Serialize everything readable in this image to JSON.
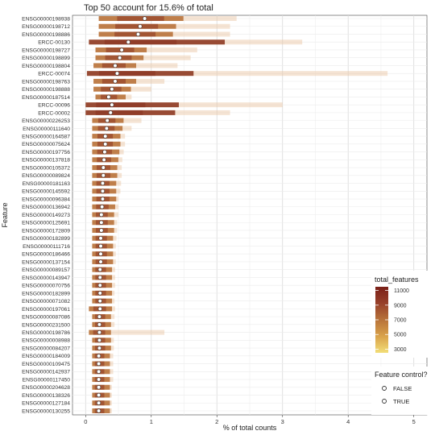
{
  "chart_data": {
    "type": "scatter",
    "title": "Top 50 account for 15.6% of total",
    "xlabel": "% of total counts",
    "ylabel": "Feature",
    "xlim": [
      -0.2,
      5.2
    ],
    "x_ticks": [
      0,
      1,
      2,
      3,
      4,
      5
    ],
    "grid": true,
    "features": [
      {
        "name": "ENSG00000198938",
        "median": 0.9,
        "low": 0.2,
        "high": 2.3
      },
      {
        "name": "ENSG00000198712",
        "median": 0.83,
        "low": 0.2,
        "high": 2.2
      },
      {
        "name": "ENSG00000198886",
        "median": 0.8,
        "low": 0.2,
        "high": 2.2
      },
      {
        "name": "ERCC-00130",
        "median": 0.65,
        "low": 0.05,
        "high": 3.3
      },
      {
        "name": "ENSG00000198727",
        "median": 0.55,
        "low": 0.15,
        "high": 1.7
      },
      {
        "name": "ENSG00000198899",
        "median": 0.52,
        "low": 0.15,
        "high": 1.6
      },
      {
        "name": "ENSG00000198804",
        "median": 0.45,
        "low": 0.12,
        "high": 1.4
      },
      {
        "name": "ERCC-00074",
        "median": 0.48,
        "low": 0.02,
        "high": 4.6
      },
      {
        "name": "ENSG00000198763",
        "median": 0.45,
        "low": 0.12,
        "high": 1.2
      },
      {
        "name": "ENSG00000198888",
        "median": 0.4,
        "low": 0.12,
        "high": 1.0
      },
      {
        "name": "ENSG00000187514",
        "median": 0.35,
        "low": 0.15,
        "high": 0.7
      },
      {
        "name": "ERCC-00096",
        "median": 0.4,
        "low": 0.0,
        "high": 3.0
      },
      {
        "name": "ERCC-00002",
        "median": 0.38,
        "low": 0.0,
        "high": 2.2
      },
      {
        "name": "ENSG00000226253",
        "median": 0.33,
        "low": 0.1,
        "high": 0.85
      },
      {
        "name": "ENSG00000111640",
        "median": 0.32,
        "low": 0.1,
        "high": 0.7
      },
      {
        "name": "ENSG00000164587",
        "median": 0.3,
        "low": 0.1,
        "high": 0.6
      },
      {
        "name": "ENSG00000075624",
        "median": 0.3,
        "low": 0.1,
        "high": 0.6
      },
      {
        "name": "ENSG00000197756",
        "median": 0.29,
        "low": 0.1,
        "high": 0.58
      },
      {
        "name": "ENSG00000137818",
        "median": 0.28,
        "low": 0.1,
        "high": 0.56
      },
      {
        "name": "ENSG00000105372",
        "median": 0.27,
        "low": 0.1,
        "high": 0.55
      },
      {
        "name": "ENSG00000089824",
        "median": 0.27,
        "low": 0.1,
        "high": 0.55
      },
      {
        "name": "ENSG00000181163",
        "median": 0.26,
        "low": 0.1,
        "high": 0.54
      },
      {
        "name": "ENSG00000145592",
        "median": 0.26,
        "low": 0.1,
        "high": 0.53
      },
      {
        "name": "ENSG00000096384",
        "median": 0.26,
        "low": 0.1,
        "high": 0.5
      },
      {
        "name": "ENSG00000136942",
        "median": 0.25,
        "low": 0.1,
        "high": 0.5
      },
      {
        "name": "ENSG00000149273",
        "median": 0.24,
        "low": 0.1,
        "high": 0.5
      },
      {
        "name": "ENSG00000125691",
        "median": 0.24,
        "low": 0.1,
        "high": 0.48
      },
      {
        "name": "ENSG00000172809",
        "median": 0.24,
        "low": 0.1,
        "high": 0.48
      },
      {
        "name": "ENSG00000182899",
        "median": 0.23,
        "low": 0.1,
        "high": 0.47
      },
      {
        "name": "ENSG00000111716",
        "median": 0.23,
        "low": 0.1,
        "high": 0.46
      },
      {
        "name": "ENSG00000186466",
        "median": 0.23,
        "low": 0.1,
        "high": 0.46
      },
      {
        "name": "ENSG00000137154",
        "median": 0.23,
        "low": 0.1,
        "high": 0.46
      },
      {
        "name": "ENSG00000089157",
        "median": 0.22,
        "low": 0.1,
        "high": 0.45
      },
      {
        "name": "ENSG00000143947",
        "median": 0.22,
        "low": 0.1,
        "high": 0.45
      },
      {
        "name": "ENSG00000070756",
        "median": 0.22,
        "low": 0.1,
        "high": 0.45
      },
      {
        "name": "ENSG00000182899",
        "median": 0.22,
        "low": 0.1,
        "high": 0.44
      },
      {
        "name": "ENSG00000071082",
        "median": 0.22,
        "low": 0.1,
        "high": 0.44
      },
      {
        "name": "ENSG00000197061",
        "median": 0.22,
        "low": 0.05,
        "high": 0.45
      },
      {
        "name": "ENSG00000087086",
        "median": 0.21,
        "low": 0.1,
        "high": 0.44
      },
      {
        "name": "ENSG00000231500",
        "median": 0.21,
        "low": 0.1,
        "high": 0.44
      },
      {
        "name": "ENSG00000198786",
        "median": 0.21,
        "low": 0.05,
        "high": 1.2
      },
      {
        "name": "ENSG00000008988",
        "median": 0.21,
        "low": 0.1,
        "high": 0.43
      },
      {
        "name": "ENSG00000084207",
        "median": 0.21,
        "low": 0.1,
        "high": 0.43
      },
      {
        "name": "ENSG00000184009",
        "median": 0.2,
        "low": 0.1,
        "high": 0.42
      },
      {
        "name": "ENSG00000109475",
        "median": 0.2,
        "low": 0.1,
        "high": 0.42
      },
      {
        "name": "ENSG00000142937",
        "median": 0.2,
        "low": 0.1,
        "high": 0.42
      },
      {
        "name": "ENSG00000117450",
        "median": 0.2,
        "low": 0.1,
        "high": 0.42
      },
      {
        "name": "ENSG00000204628",
        "median": 0.2,
        "low": 0.1,
        "high": 0.4
      },
      {
        "name": "ENSG00000138326",
        "median": 0.2,
        "low": 0.1,
        "high": 0.4
      },
      {
        "name": "ENSG00000127184",
        "median": 0.2,
        "low": 0.1,
        "high": 0.4
      },
      {
        "name": "ENSG00000130255",
        "median": 0.2,
        "low": 0.1,
        "high": 0.4
      }
    ],
    "color_legend": {
      "title": "total_features",
      "ticks": [
        "11000",
        "9000",
        "7000",
        "5000",
        "3000"
      ],
      "range": [
        2500,
        11500
      ],
      "colors": [
        "#f2de78",
        "#d9a24a",
        "#b8733a",
        "#97402a",
        "#7a1f18"
      ]
    },
    "shape_legend": {
      "title": "Feature control?",
      "items": [
        "FALSE",
        "TRUE"
      ]
    }
  }
}
